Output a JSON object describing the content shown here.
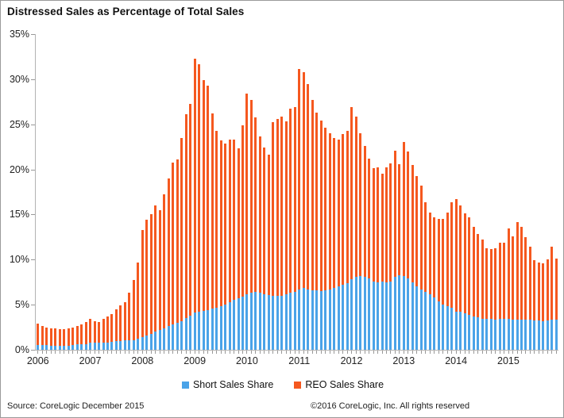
{
  "title": "Distressed Sales as Percentage of Total Sales",
  "legend": {
    "items": [
      {
        "label": "Short Sales Share",
        "color": "#4aa3e8"
      },
      {
        "label": "REO Sales Share",
        "color": "#f5581f"
      }
    ]
  },
  "footer": {
    "source": "Source: CoreLogic December 2015",
    "copyright": "©2016 CoreLogic, Inc. All rights reserved"
  },
  "chart_data": {
    "type": "bar",
    "stacked": true,
    "title": "Distressed Sales as Percentage of Total Sales",
    "x_monthly_from": "2006-01",
    "x_monthly_to": "2015-12",
    "categories_years": [
      "2006",
      "2007",
      "2008",
      "2009",
      "2010",
      "2011",
      "2012",
      "2013",
      "2014",
      "2015"
    ],
    "months_per_year": 12,
    "ylim": [
      0,
      35
    ],
    "y_tick_step": 5,
    "y_ticks": [
      "0%",
      "5%",
      "10%",
      "15%",
      "20%",
      "25%",
      "30%",
      "35%"
    ],
    "grid": false,
    "legend_position": "bottom",
    "series": [
      {
        "name": "Short Sales Share",
        "color": "#4aa3e8",
        "values": [
          0.5,
          0.5,
          0.5,
          0.45,
          0.45,
          0.45,
          0.45,
          0.45,
          0.5,
          0.6,
          0.6,
          0.65,
          0.75,
          0.75,
          0.75,
          0.8,
          0.8,
          0.85,
          1.0,
          1.0,
          1.05,
          1.1,
          1.1,
          1.2,
          1.4,
          1.6,
          1.8,
          2.0,
          2.2,
          2.4,
          2.6,
          2.8,
          3.0,
          3.2,
          3.5,
          3.8,
          4.1,
          4.2,
          4.3,
          4.4,
          4.55,
          4.7,
          4.8,
          5.05,
          5.3,
          5.5,
          5.7,
          5.9,
          6.2,
          6.3,
          6.4,
          6.3,
          6.2,
          6.1,
          6.0,
          6.0,
          6.0,
          6.2,
          6.3,
          6.4,
          6.7,
          6.9,
          6.7,
          6.6,
          6.6,
          6.5,
          6.6,
          6.7,
          6.9,
          7.0,
          7.2,
          7.4,
          7.8,
          8.1,
          8.2,
          8.1,
          7.9,
          7.6,
          7.5,
          7.6,
          7.5,
          7.6,
          8.1,
          8.3,
          8.2,
          7.9,
          7.5,
          7.0,
          6.7,
          6.45,
          6.2,
          5.8,
          5.4,
          5.0,
          4.8,
          4.7,
          4.25,
          4.2,
          4.05,
          3.9,
          3.7,
          3.6,
          3.45,
          3.4,
          3.4,
          3.35,
          3.4,
          3.4,
          3.4,
          3.35,
          3.35,
          3.3,
          3.3,
          3.3,
          3.25,
          3.25,
          3.2,
          3.25,
          3.3,
          3.3
        ]
      },
      {
        "name": "REO Sales Share",
        "color": "#f5581f",
        "values": [
          2.4,
          2.1,
          1.95,
          1.95,
          1.9,
          1.85,
          1.85,
          1.9,
          1.95,
          2.0,
          2.25,
          2.45,
          2.65,
          2.45,
          2.35,
          2.6,
          2.9,
          3.15,
          3.5,
          3.9,
          4.25,
          5.2,
          6.6,
          8.5,
          11.9,
          12.8,
          13.2,
          14.0,
          13.3,
          14.8,
          16.4,
          18.0,
          18.1,
          20.3,
          22.6,
          23.5,
          28.2,
          27.5,
          25.6,
          24.9,
          21.65,
          19.6,
          18.4,
          17.85,
          18.0,
          17.8,
          16.6,
          19.0,
          22.2,
          21.4,
          19.4,
          17.4,
          16.2,
          15.5,
          19.2,
          19.6,
          19.9,
          19.1,
          20.4,
          20.5,
          24.4,
          23.9,
          22.8,
          21.1,
          19.7,
          18.9,
          18.0,
          17.3,
          16.6,
          16.3,
          16.7,
          16.9,
          19.1,
          17.8,
          15.8,
          14.5,
          13.3,
          12.5,
          12.7,
          11.9,
          12.7,
          13.1,
          14.0,
          12.3,
          14.8,
          14.1,
          13.0,
          12.3,
          11.5,
          9.95,
          9.0,
          8.9,
          9.1,
          9.5,
          10.4,
          11.7,
          12.45,
          11.8,
          11.05,
          10.8,
          9.9,
          9.2,
          8.75,
          7.9,
          7.8,
          7.95,
          8.5,
          8.5,
          10.1,
          9.25,
          10.85,
          10.3,
          9.2,
          8.1,
          6.65,
          6.45,
          6.4,
          6.75,
          8.1,
          6.8
        ]
      }
    ]
  }
}
